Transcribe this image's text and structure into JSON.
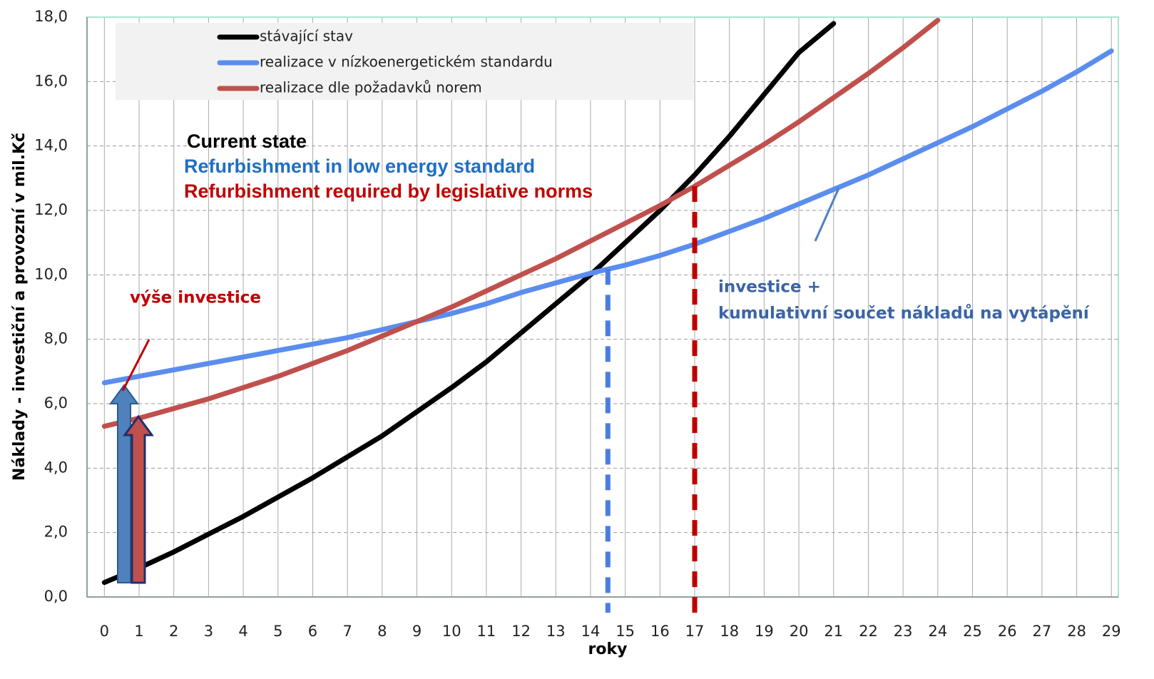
{
  "chart_data": {
    "type": "line",
    "x_label": "roky",
    "y_label": "Náklady   - investiční a provozní v mil.Kč",
    "x": [
      0,
      1,
      2,
      3,
      4,
      5,
      6,
      7,
      8,
      9,
      10,
      11,
      12,
      13,
      14,
      15,
      16,
      17,
      18,
      19,
      20,
      21,
      22,
      23,
      24,
      25,
      26,
      27,
      28,
      29
    ],
    "xlim": [
      -0.5,
      29.2
    ],
    "xticks": [
      0,
      1,
      2,
      3,
      4,
      5,
      6,
      7,
      8,
      9,
      10,
      11,
      12,
      13,
      14,
      15,
      16,
      17,
      18,
      19,
      20,
      21,
      22,
      23,
      24,
      25,
      26,
      27,
      28,
      29
    ],
    "ylim": [
      0,
      18
    ],
    "yticks": [
      {
        "value": 0,
        "label": "0,0"
      },
      {
        "value": 2,
        "label": "2,0"
      },
      {
        "value": 4,
        "label": "4,0"
      },
      {
        "value": 6,
        "label": "6,0"
      },
      {
        "value": 8,
        "label": "8,0"
      },
      {
        "value": 10,
        "label": "10,0"
      },
      {
        "value": 12,
        "label": "12,0"
      },
      {
        "value": 14,
        "label": "14,0"
      },
      {
        "value": 16,
        "label": "16,0"
      },
      {
        "value": 18,
        "label": "18,0"
      }
    ],
    "grid": true,
    "series": [
      {
        "name": "stávající stav",
        "color": "#000000",
        "values": [
          0.45,
          0.9,
          1.4,
          1.95,
          2.5,
          3.1,
          3.7,
          4.35,
          5.0,
          5.75,
          6.5,
          7.3,
          8.2,
          9.1,
          10.0,
          11.0,
          12.0,
          13.1,
          14.3,
          15.6,
          16.9,
          17.8,
          null,
          null,
          null,
          null,
          null,
          null,
          null,
          null
        ]
      },
      {
        "name": "realizace v nízkoenergetickém standardu",
        "color": "#5b8def",
        "values": [
          6.65,
          6.85,
          7.05,
          7.25,
          7.45,
          7.65,
          7.85,
          8.05,
          8.3,
          8.55,
          8.8,
          9.1,
          9.45,
          9.75,
          10.05,
          10.3,
          10.6,
          10.95,
          11.35,
          11.75,
          12.2,
          12.65,
          13.1,
          13.6,
          14.1,
          14.6,
          15.15,
          15.7,
          16.3,
          16.95
        ]
      },
      {
        "name": "realizace dle požadavků norem",
        "color": "#c0504d",
        "values": [
          5.3,
          5.55,
          5.85,
          6.15,
          6.5,
          6.85,
          7.25,
          7.65,
          8.1,
          8.55,
          9.0,
          9.5,
          10.0,
          10.5,
          11.05,
          11.6,
          12.15,
          12.75,
          13.4,
          14.05,
          14.75,
          15.5,
          16.25,
          17.05,
          17.9,
          null,
          null,
          null,
          null,
          null
        ]
      }
    ],
    "vlines": [
      {
        "x": 14.5,
        "series": 1,
        "color": "#4a7de0"
      },
      {
        "x": 17,
        "series": 2,
        "color": "#c00000"
      }
    ],
    "annotations": [
      {
        "text": "Current state",
        "color": "#000000"
      },
      {
        "text": "Refurbishment in low energy standard",
        "color": "#1f6fc5"
      },
      {
        "text": "Refurbishment required by legislative  norms",
        "color": "#c00000"
      },
      {
        "text": "výše investice",
        "color": "#c00000"
      },
      {
        "text": "investice +",
        "color": "#3a64a8"
      },
      {
        "text": "kumulativní součet nákladů na vytápění",
        "color": "#3a64a8"
      }
    ]
  }
}
